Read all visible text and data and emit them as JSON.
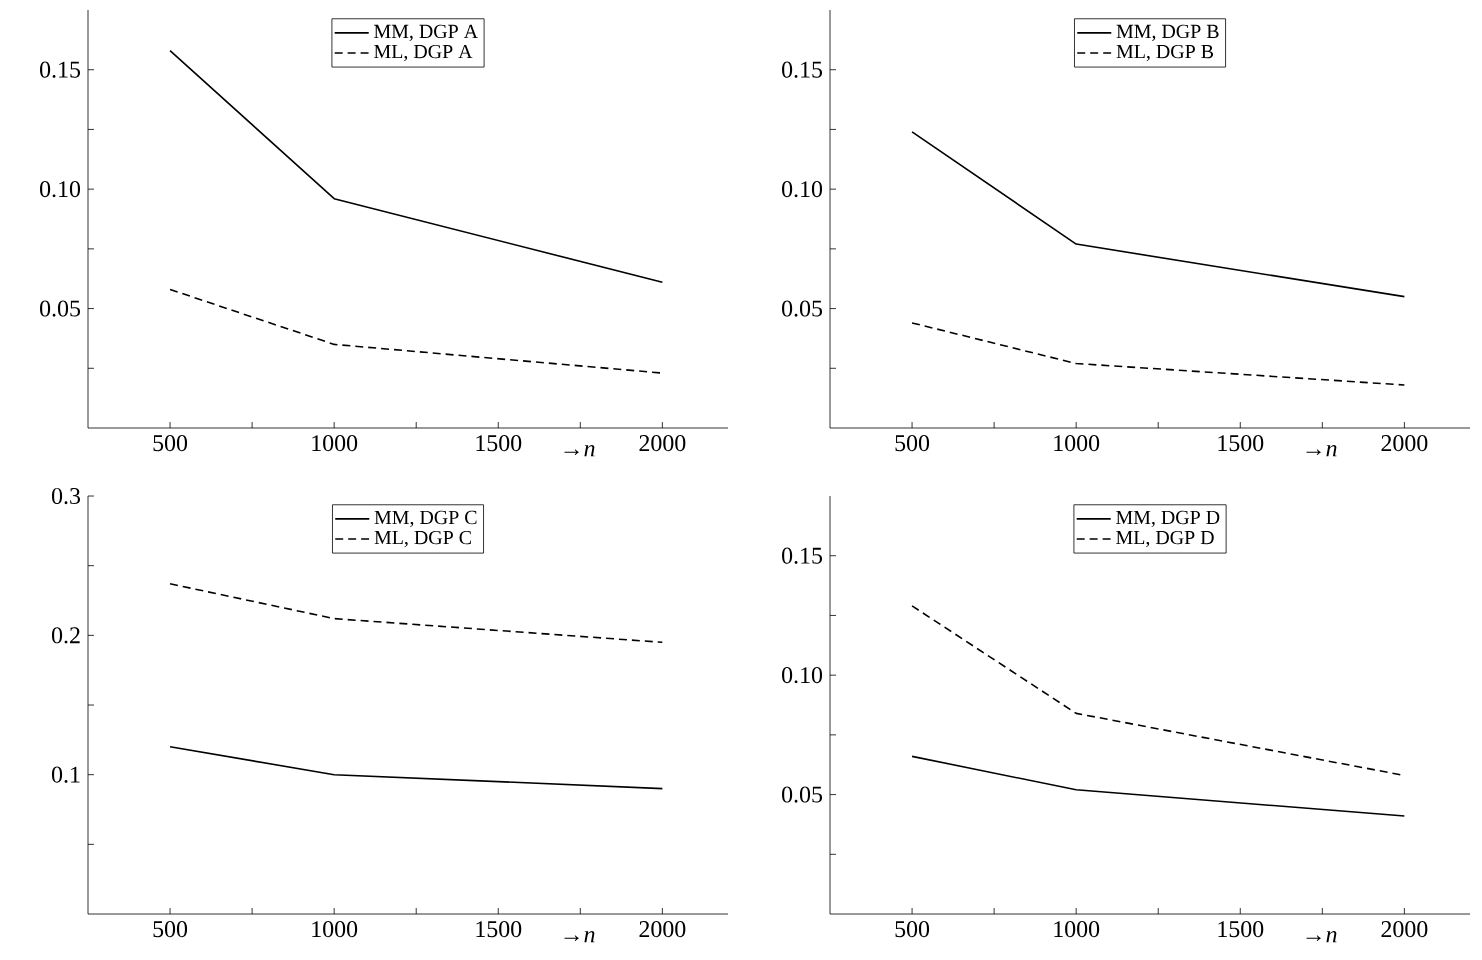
{
  "chart_data": [
    {
      "type": "line",
      "x": [
        500,
        1000,
        2000
      ],
      "xlabel": "→*n*",
      "xlim": [
        250,
        2200
      ],
      "ylim": [
        0,
        0.175
      ],
      "legend": "top",
      "xticks": [
        500,
        {
          "value": 750,
          "label": null
        },
        1000,
        {
          "value": 1250,
          "label": null
        },
        1500,
        {
          "value": 1750,
          "label": null
        },
        2000
      ],
      "yticks": [
        {
          "value": 0.025,
          "label": null
        },
        {
          "value": 0.05,
          "label": "0.05"
        },
        {
          "value": 0.075,
          "label": null
        },
        {
          "value": 0.1,
          "label": "0.10"
        },
        {
          "value": 0.125,
          "label": null
        },
        {
          "value": 0.15,
          "label": "0.15"
        }
      ],
      "series": [
        {
          "name": "MM, DGP A",
          "color": "#000000",
          "line_style": "solid",
          "values": [
            0.158,
            0.096,
            0.061
          ]
        },
        {
          "name": "ML, DGP A",
          "color": "#000000",
          "line_style": "dashed",
          "values": [
            0.058,
            0.035,
            0.023
          ]
        }
      ]
    },
    {
      "type": "line",
      "x": [
        500,
        1000,
        2000
      ],
      "xlabel": "→*n*",
      "xlim": [
        250,
        2200
      ],
      "ylim": [
        0,
        0.175
      ],
      "legend": "top",
      "xticks": [
        500,
        {
          "value": 750,
          "label": null
        },
        1000,
        {
          "value": 1250,
          "label": null
        },
        1500,
        {
          "value": 1750,
          "label": null
        },
        2000
      ],
      "yticks": [
        {
          "value": 0.025,
          "label": null
        },
        {
          "value": 0.05,
          "label": "0.05"
        },
        {
          "value": 0.075,
          "label": null
        },
        {
          "value": 0.1,
          "label": "0.10"
        },
        {
          "value": 0.125,
          "label": null
        },
        {
          "value": 0.15,
          "label": "0.15"
        }
      ],
      "series": [
        {
          "name": "MM, DGP B",
          "color": "#000000",
          "line_style": "solid",
          "values": [
            0.124,
            0.077,
            0.055
          ]
        },
        {
          "name": "ML, DGP B",
          "color": "#000000",
          "line_style": "dashed",
          "values": [
            0.044,
            0.027,
            0.018
          ]
        }
      ]
    },
    {
      "type": "line",
      "x": [
        500,
        1000,
        2000
      ],
      "xlabel": "→*n*",
      "xlim": [
        250,
        2200
      ],
      "ylim": [
        0,
        0.3
      ],
      "legend": "top",
      "xticks": [
        500,
        {
          "value": 750,
          "label": null
        },
        1000,
        {
          "value": 1250,
          "label": null
        },
        1500,
        {
          "value": 1750,
          "label": null
        },
        2000
      ],
      "yticks": [
        {
          "value": 0.05,
          "label": null
        },
        0.1,
        {
          "value": 0.15,
          "label": null
        },
        0.2,
        {
          "value": 0.25,
          "label": null
        },
        0.3
      ],
      "series": [
        {
          "name": "MM, DGP C",
          "color": "#000000",
          "line_style": "solid",
          "values": [
            0.12,
            0.1,
            0.09
          ]
        },
        {
          "name": "ML, DGP C",
          "color": "#000000",
          "line_style": "dashed",
          "values": [
            0.237,
            0.212,
            0.195
          ]
        }
      ]
    },
    {
      "type": "line",
      "x": [
        500,
        1000,
        2000
      ],
      "xlabel": "→*n*",
      "xlim": [
        250,
        2200
      ],
      "ylim": [
        0,
        0.175
      ],
      "legend": "top",
      "xticks": [
        500,
        {
          "value": 750,
          "label": null
        },
        1000,
        {
          "value": 1250,
          "label": null
        },
        1500,
        {
          "value": 1750,
          "label": null
        },
        2000
      ],
      "yticks": [
        {
          "value": 0.025,
          "label": null
        },
        {
          "value": 0.05,
          "label": "0.05"
        },
        {
          "value": 0.075,
          "label": null
        },
        {
          "value": 0.1,
          "label": "0.10"
        },
        {
          "value": 0.125,
          "label": null
        },
        {
          "value": 0.15,
          "label": "0.15"
        }
      ],
      "series": [
        {
          "name": "MM, DGP D",
          "color": "#000000",
          "line_style": "solid",
          "values": [
            0.066,
            0.052,
            0.041
          ]
        },
        {
          "name": "ML, DGP D",
          "color": "#000000",
          "line_style": "dashed",
          "values": [
            0.129,
            0.084,
            0.058
          ]
        }
      ]
    }
  ]
}
